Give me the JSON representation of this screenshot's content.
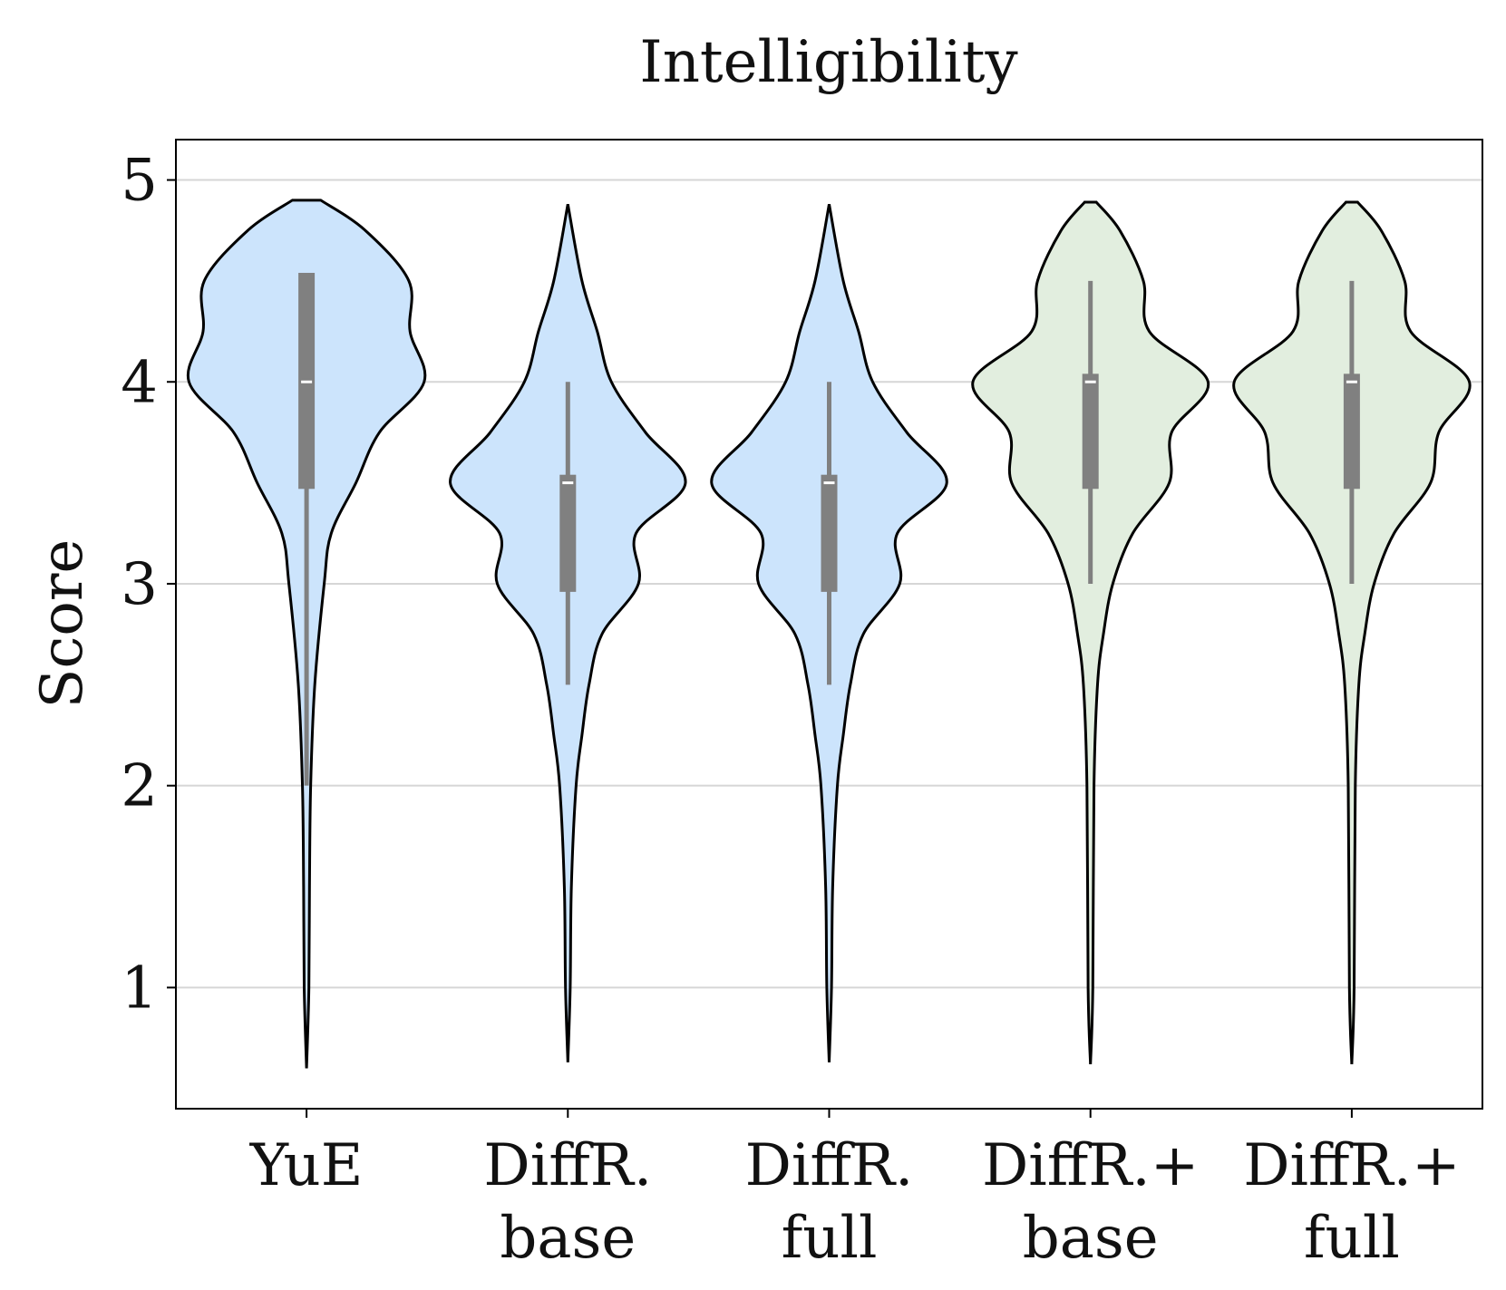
{
  "chart_data": {
    "type": "violin",
    "title": "Intelligibility",
    "y_label": "Score",
    "categories": [
      [
        "YuE"
      ],
      [
        "DiffR.",
        "base"
      ],
      [
        "DiffR.",
        "full"
      ],
      [
        "DiffR.+",
        "base"
      ],
      [
        "DiffR.+",
        "full"
      ]
    ],
    "ylim": [
      0.4,
      5.2
    ],
    "yticks": [
      1,
      2,
      3,
      4,
      5
    ],
    "grid": true,
    "violins": [
      {
        "color": "#cce4fc",
        "profile_y": [
          0.6,
          1,
          1.5,
          2,
          2.5,
          3,
          3.25,
          3.5,
          3.75,
          4,
          4.25,
          4.5,
          4.75,
          4.9
        ],
        "profile_width": [
          0,
          0.02,
          0.025,
          0.035,
          0.07,
          0.15,
          0.21,
          0.42,
          0.62,
          1.0,
          0.88,
          0.87,
          0.5,
          0.12
        ],
        "q1": 3.47,
        "median": 4.0,
        "q3": 4.54,
        "whisker_low": 2.0,
        "whisker_high": 4.54
      },
      {
        "color": "#cce4fc",
        "profile_y": [
          0.63,
          1,
          1.5,
          2,
          2.25,
          2.5,
          2.75,
          3,
          3.25,
          3.5,
          3.75,
          4,
          4.25,
          4.5,
          4.88
        ],
        "profile_width": [
          0,
          0.02,
          0.03,
          0.07,
          0.12,
          0.18,
          0.29,
          0.6,
          0.58,
          1.0,
          0.66,
          0.37,
          0.25,
          0.12,
          0
        ],
        "q1": 2.96,
        "median": 3.5,
        "q3": 3.54,
        "whisker_low": 2.5,
        "whisker_high": 4.0
      },
      {
        "color": "#cce4fc",
        "profile_y": [
          0.63,
          1,
          1.5,
          2,
          2.25,
          2.5,
          2.75,
          3,
          3.25,
          3.5,
          3.75,
          4,
          4.25,
          4.5,
          4.88
        ],
        "profile_width": [
          0,
          0.02,
          0.03,
          0.07,
          0.12,
          0.18,
          0.29,
          0.6,
          0.58,
          1.0,
          0.66,
          0.37,
          0.25,
          0.12,
          0
        ],
        "q1": 2.96,
        "median": 3.5,
        "q3": 3.54,
        "whisker_low": 2.5,
        "whisker_high": 4.0
      },
      {
        "color": "#e2eedf",
        "profile_y": [
          0.62,
          1,
          2,
          2.5,
          2.75,
          3,
          3.25,
          3.5,
          3.75,
          4,
          4.25,
          4.5,
          4.75,
          4.89
        ],
        "profile_width": [
          0,
          0.02,
          0.03,
          0.06,
          0.11,
          0.19,
          0.36,
          0.67,
          0.69,
          1.0,
          0.5,
          0.45,
          0.25,
          0.05
        ],
        "q1": 3.47,
        "median": 4.0,
        "q3": 4.04,
        "whisker_low": 3.0,
        "whisker_high": 4.5
      },
      {
        "color": "#e2eedf",
        "profile_y": [
          0.62,
          1,
          2,
          2.5,
          2.75,
          3,
          3.25,
          3.5,
          3.75,
          4,
          4.25,
          4.5,
          4.75,
          4.89
        ],
        "profile_width": [
          0,
          0.02,
          0.03,
          0.06,
          0.11,
          0.19,
          0.36,
          0.67,
          0.74,
          1.0,
          0.5,
          0.45,
          0.25,
          0.05
        ],
        "q1": 3.47,
        "median": 4.0,
        "q3": 4.04,
        "whisker_low": 3.0,
        "whisker_high": 4.5
      }
    ]
  }
}
